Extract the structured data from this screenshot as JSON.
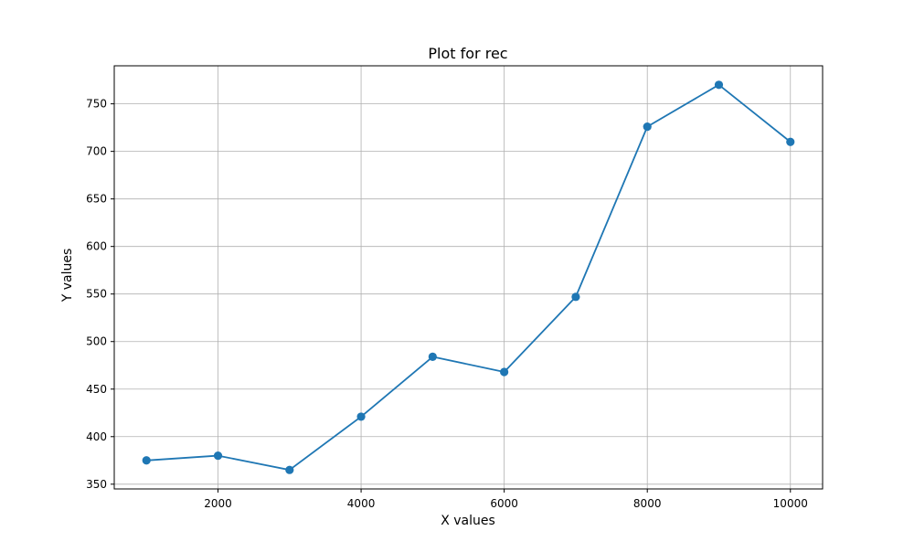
{
  "chart_data": {
    "type": "line",
    "title": "Plot for rec",
    "xlabel": "X values",
    "ylabel": "Y values",
    "x": [
      1000,
      2000,
      3000,
      4000,
      5000,
      6000,
      7000,
      8000,
      9000,
      10000
    ],
    "series": [
      {
        "values": [
          375,
          380,
          365,
          421,
          484,
          468,
          547,
          726,
          770,
          710
        ],
        "color": "#1f77b4",
        "marker": "circle"
      }
    ],
    "xlim": [
      550,
      10450
    ],
    "ylim": [
      345,
      790
    ],
    "x_ticks": [
      2000,
      4000,
      6000,
      8000,
      10000
    ],
    "y_ticks": [
      350,
      400,
      450,
      500,
      550,
      600,
      650,
      700,
      750
    ],
    "grid": true,
    "legend": false
  },
  "colors": {
    "line": "#1f77b4",
    "grid": "#b0b0b0",
    "axis": "#000000",
    "background": "#ffffff"
  }
}
